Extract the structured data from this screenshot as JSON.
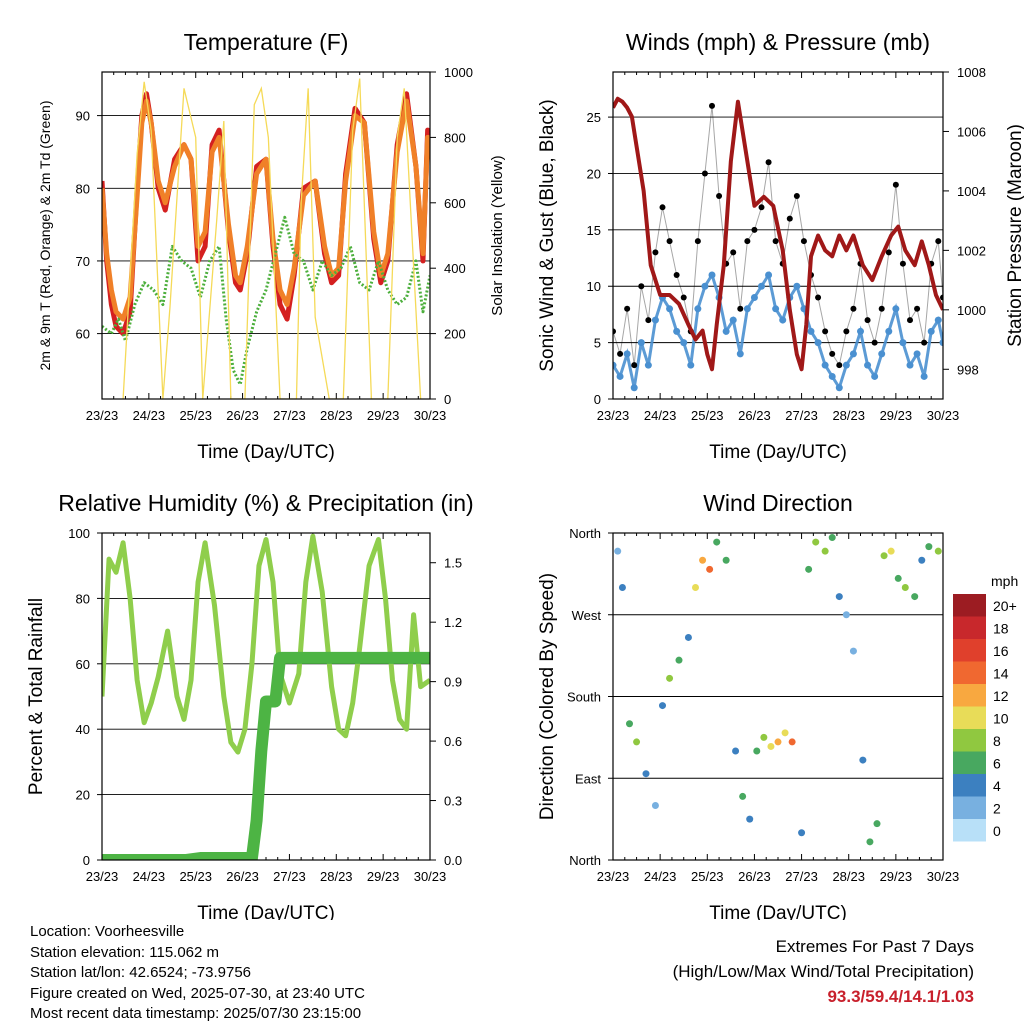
{
  "chart_data": [
    {
      "type": "line",
      "title": "Temperature (F)",
      "xlabel": "Time (Day/UTC)",
      "ylabel": "2m & 9m T (Red, Orange) & 2m Td (Green)",
      "y2label": "Solar Insolation (Yellow)",
      "categories": [
        "23/23",
        "24/23",
        "25/23",
        "26/23",
        "27/23",
        "28/23",
        "29/23",
        "30/23"
      ],
      "xlim": [
        0,
        7
      ],
      "ylim": [
        51,
        96
      ],
      "y2lim": [
        0,
        1000
      ],
      "yticks": [
        60,
        70,
        80,
        90
      ],
      "y2ticks": [
        0,
        200,
        400,
        600,
        800,
        1000
      ],
      "series": [
        {
          "color": "#d42020",
          "axis": "left",
          "x": [
            0,
            0.1,
            0.2,
            0.3,
            0.45,
            0.6,
            0.75,
            0.85,
            0.95,
            1.05,
            1.2,
            1.35,
            1.55,
            1.75,
            1.9,
            2.05,
            2.2,
            2.35,
            2.5,
            2.7,
            2.85,
            2.95,
            3.1,
            3.3,
            3.5,
            3.65,
            3.8,
            3.95,
            4.1,
            4.3,
            4.55,
            4.75,
            4.9,
            5.05,
            5.2,
            5.4,
            5.6,
            5.8,
            5.95,
            6.1,
            6.3,
            6.5,
            6.7,
            6.85,
            6.95,
            7.0
          ],
          "y": [
            81,
            70,
            64,
            61,
            60,
            63,
            80,
            90,
            93,
            89,
            80,
            77,
            84,
            86,
            84,
            70,
            72,
            86,
            88,
            74,
            67,
            66,
            71,
            83,
            84,
            72,
            64,
            62,
            68,
            80,
            81,
            71,
            67,
            68,
            82,
            91,
            89,
            73,
            67,
            70,
            86,
            93,
            83,
            70,
            88,
            84
          ]
        },
        {
          "color": "#f08028",
          "axis": "left",
          "x": [
            0,
            0.1,
            0.2,
            0.3,
            0.45,
            0.6,
            0.75,
            0.85,
            0.95,
            1.05,
            1.2,
            1.35,
            1.55,
            1.75,
            1.9,
            2.05,
            2.2,
            2.35,
            2.5,
            2.7,
            2.85,
            2.95,
            3.1,
            3.3,
            3.5,
            3.65,
            3.8,
            3.95,
            4.1,
            4.3,
            4.55,
            4.75,
            4.9,
            5.05,
            5.2,
            5.4,
            5.6,
            5.8,
            5.95,
            6.1,
            6.3,
            6.5,
            6.7,
            6.85,
            6.95,
            7.0
          ],
          "y": [
            80,
            71,
            66,
            63,
            62,
            65,
            79,
            89,
            92,
            89,
            81,
            78,
            83,
            86,
            84,
            72,
            74,
            85,
            87,
            75,
            68,
            67,
            72,
            82,
            84,
            73,
            66,
            64,
            69,
            79,
            81,
            72,
            68,
            69,
            81,
            90,
            89,
            74,
            68,
            71,
            85,
            92,
            83,
            71,
            87,
            84
          ]
        },
        {
          "color": "#4caf3c",
          "axis": "left",
          "x": [
            0,
            0.2,
            0.35,
            0.5,
            0.7,
            0.9,
            1.1,
            1.3,
            1.5,
            1.7,
            1.9,
            2.1,
            2.3,
            2.5,
            2.65,
            2.8,
            2.95,
            3.1,
            3.3,
            3.5,
            3.7,
            3.9,
            4.1,
            4.3,
            4.5,
            4.7,
            4.9,
            5.1,
            5.3,
            5.5,
            5.7,
            5.9,
            6.1,
            6.3,
            6.5,
            6.7,
            6.85,
            7.0
          ],
          "y": [
            61,
            60,
            62,
            59,
            64,
            67,
            66,
            64,
            72,
            70,
            69,
            65,
            70,
            72,
            62,
            55,
            53,
            58,
            63,
            66,
            71,
            76,
            71,
            70,
            66,
            70,
            68,
            69,
            72,
            67,
            66,
            70,
            66,
            64,
            65,
            70,
            63,
            68
          ]
        },
        {
          "color": "#f5da58",
          "axis": "right",
          "x": [
            0.45,
            0.75,
            0.9,
            1.05,
            1.3,
            1.45,
            1.75,
            2.0,
            2.15,
            2.45,
            2.6,
            2.75,
            3.05,
            3.25,
            3.4,
            3.55,
            3.8,
            4.15,
            4.25,
            4.4,
            4.55,
            4.85,
            5.15,
            5.35,
            5.5,
            5.75,
            6.1,
            6.3,
            6.45,
            6.8
          ],
          "y": [
            0,
            750,
            970,
            820,
            0,
            280,
            950,
            800,
            0,
            550,
            850,
            0,
            0,
            900,
            950,
            800,
            0,
            0,
            600,
            950,
            250,
            0,
            0,
            820,
            980,
            0,
            0,
            800,
            950,
            0
          ]
        }
      ]
    },
    {
      "type": "scatter",
      "title": "Winds (mph) & Pressure (mb)",
      "xlabel": "Time (Day/UTC)",
      "ylabel": "Sonic Wind & Gust (Blue, Black)",
      "y2label": "Station Pressure (Maroon)",
      "categories": [
        "23/23",
        "24/23",
        "25/23",
        "26/23",
        "27/23",
        "28/23",
        "29/23",
        "30/23"
      ],
      "xlim": [
        0,
        7
      ],
      "ylim": [
        0,
        29
      ],
      "y2lim": [
        997,
        1008
      ],
      "yticks": [
        0,
        5,
        10,
        15,
        20,
        25
      ],
      "y2ticks": [
        998,
        1000,
        1002,
        1004,
        1006,
        1008
      ],
      "series": [
        {
          "color": "#4a90d0",
          "kind": "wind",
          "x": [
            0,
            0.15,
            0.3,
            0.45,
            0.6,
            0.75,
            0.9,
            1.05,
            1.2,
            1.35,
            1.5,
            1.65,
            1.8,
            1.95,
            2.1,
            2.25,
            2.4,
            2.55,
            2.7,
            2.85,
            3.0,
            3.15,
            3.3,
            3.45,
            3.6,
            3.75,
            3.9,
            4.05,
            4.2,
            4.35,
            4.5,
            4.65,
            4.8,
            4.95,
            5.1,
            5.25,
            5.4,
            5.55,
            5.7,
            5.85,
            6.0,
            6.15,
            6.3,
            6.45,
            6.6,
            6.75,
            6.9,
            7.0
          ],
          "y": [
            3,
            2,
            4,
            1,
            5,
            3,
            7,
            9,
            8,
            6,
            5,
            3,
            8,
            10,
            11,
            9,
            6,
            7,
            4,
            8,
            9,
            10,
            11,
            8,
            7,
            9,
            10,
            8,
            6,
            5,
            3,
            2,
            1,
            3,
            4,
            6,
            3,
            2,
            4,
            6,
            8,
            5,
            3,
            4,
            2,
            6,
            7,
            5
          ]
        },
        {
          "color": "#000000",
          "kind": "gust",
          "x": [
            0,
            0.15,
            0.3,
            0.45,
            0.6,
            0.75,
            0.9,
            1.05,
            1.2,
            1.35,
            1.5,
            1.65,
            1.8,
            1.95,
            2.1,
            2.25,
            2.4,
            2.55,
            2.7,
            2.85,
            3.0,
            3.15,
            3.3,
            3.45,
            3.6,
            3.75,
            3.9,
            4.05,
            4.2,
            4.35,
            4.5,
            4.65,
            4.8,
            4.95,
            5.1,
            5.25,
            5.4,
            5.55,
            5.7,
            5.85,
            6.0,
            6.15,
            6.3,
            6.45,
            6.6,
            6.75,
            6.9,
            7.0
          ],
          "y": [
            6,
            4,
            8,
            3,
            10,
            7,
            13,
            17,
            14,
            11,
            9,
            6,
            14,
            20,
            26,
            18,
            12,
            13,
            8,
            14,
            15,
            17,
            21,
            14,
            12,
            16,
            18,
            14,
            11,
            9,
            6,
            4,
            3,
            6,
            8,
            12,
            7,
            5,
            8,
            13,
            19,
            12,
            7,
            8,
            5,
            12,
            14,
            9
          ]
        },
        {
          "color": "#a01818",
          "kind": "pressure",
          "x": [
            0,
            0.1,
            0.2,
            0.3,
            0.4,
            0.5,
            0.65,
            0.8,
            1.0,
            1.2,
            1.4,
            1.6,
            1.75,
            1.9,
            2.0,
            2.1,
            2.2,
            2.35,
            2.5,
            2.65,
            2.8,
            3.0,
            3.2,
            3.4,
            3.6,
            3.75,
            3.9,
            4.0,
            4.1,
            4.2,
            4.35,
            4.5,
            4.65,
            4.8,
            4.95,
            5.1,
            5.3,
            5.5,
            5.7,
            5.9,
            6.05,
            6.2,
            6.4,
            6.55,
            6.7,
            6.85,
            7.0
          ],
          "y": [
            1006.8,
            1007.1,
            1007.0,
            1006.8,
            1006.5,
            1005.5,
            1004.0,
            1001.5,
            1000.5,
            1000.5,
            1000.2,
            999.5,
            999.0,
            999.3,
            998.5,
            998.0,
            999.5,
            1001.5,
            1005.0,
            1007.0,
            1005.5,
            1003.5,
            1003.8,
            1003.5,
            1002.0,
            1000.0,
            998.5,
            998.0,
            999.5,
            1001.8,
            1002.5,
            1002.0,
            1001.8,
            1002.5,
            1002.0,
            1002.5,
            1001.5,
            1001.0,
            1001.8,
            1002.5,
            1002.8,
            1002.0,
            1001.5,
            1002.3,
            1001.5,
            1000.5,
            1000.0
          ]
        }
      ]
    },
    {
      "type": "line",
      "title": "Relative Humidity (%) & Precipitation (in)",
      "xlabel": "Time (Day/UTC)",
      "ylabel": "Percent & Total Rainfall",
      "categories": [
        "23/23",
        "24/23",
        "25/23",
        "26/23",
        "27/23",
        "28/23",
        "29/23",
        "30/23"
      ],
      "xlim": [
        0,
        7
      ],
      "ylim": [
        0,
        100
      ],
      "y2lim": [
        0,
        1.65
      ],
      "yticks": [
        0,
        20,
        40,
        60,
        80,
        100
      ],
      "y2ticks": [
        "0.0",
        "0.3",
        "0.6",
        "0.9",
        "1.2",
        "1.5"
      ],
      "series": [
        {
          "color": "#8fce4c",
          "name": "",
          "x": [
            0,
            0.15,
            0.3,
            0.45,
            0.6,
            0.75,
            0.9,
            1.05,
            1.2,
            1.4,
            1.6,
            1.75,
            1.9,
            2.05,
            2.2,
            2.4,
            2.6,
            2.75,
            2.9,
            3.05,
            3.2,
            3.35,
            3.5,
            3.65,
            3.8,
            4.0,
            4.2,
            4.35,
            4.5,
            4.7,
            4.9,
            5.05,
            5.2,
            5.35,
            5.5,
            5.7,
            5.9,
            6.05,
            6.2,
            6.35,
            6.5,
            6.65,
            6.8,
            7.0
          ],
          "y": [
            50,
            92,
            88,
            97,
            80,
            55,
            42,
            48,
            56,
            70,
            50,
            43,
            55,
            85,
            97,
            78,
            50,
            36,
            33,
            40,
            60,
            90,
            98,
            85,
            57,
            48,
            57,
            85,
            99,
            82,
            53,
            40,
            38,
            48,
            65,
            90,
            98,
            80,
            55,
            43,
            40,
            75,
            53,
            55
          ]
        },
        {
          "color": "#4db444",
          "name": "",
          "x": [
            0,
            0.3,
            0.6,
            0.9,
            1.2,
            1.5,
            1.8,
            2.1,
            2.4,
            2.7,
            3.0,
            3.2,
            3.3,
            3.4,
            3.5,
            3.6,
            3.7,
            3.8,
            3.9,
            4.2,
            4.6,
            5.0,
            5.4,
            5.8,
            6.2,
            6.6,
            7.0
          ],
          "y": [
            0,
            0,
            0,
            0,
            0,
            0,
            0,
            0.01,
            0.01,
            0.01,
            0.01,
            0.01,
            0.2,
            0.55,
            0.8,
            0.8,
            0.8,
            1.02,
            1.02,
            1.02,
            1.02,
            1.02,
            1.02,
            1.02,
            1.02,
            1.02,
            1.02
          ]
        }
      ]
    },
    {
      "type": "scatter",
      "title": "Wind Direction",
      "xlabel": "Time (Day/UTC)",
      "ylabel": "Direction (Colored By Speed)",
      "categories": [
        "23/23",
        "24/23",
        "25/23",
        "26/23",
        "27/23",
        "28/23",
        "29/23",
        "30/23"
      ],
      "xlim": [
        0,
        7
      ],
      "ylim": [
        0,
        360
      ],
      "ytick_labels": [
        "North",
        "East",
        "South",
        "West",
        "North"
      ],
      "ytick_values": [
        0,
        90,
        180,
        270,
        360
      ],
      "colorbar": {
        "unit": "mph",
        "labels": [
          "20+",
          "18",
          "16",
          "14",
          "12",
          "10",
          "8",
          "6",
          "4",
          "2",
          "0"
        ],
        "colors": [
          "#9c1c22",
          "#c8282c",
          "#e0402c",
          "#f06830",
          "#f8a840",
          "#e8dc58",
          "#90c840",
          "#48a860",
          "#3c80c0",
          "#78b0e0",
          "#b8e0f8"
        ]
      },
      "series": [
        {
          "name": "",
          "x": [
            0.1,
            0.2,
            0.35,
            0.5,
            0.7,
            0.9,
            1.05,
            1.2,
            1.4,
            1.6,
            1.75,
            1.9,
            2.05,
            2.2,
            2.4,
            2.6,
            2.75,
            2.9,
            3.05,
            3.2,
            3.35,
            3.5,
            3.65,
            3.8,
            4.0,
            4.15,
            4.3,
            4.5,
            4.65,
            4.8,
            4.95,
            5.1,
            5.3,
            5.45,
            5.6,
            5.75,
            5.9,
            6.05,
            6.2,
            6.4,
            6.55,
            6.7,
            6.9
          ],
          "y": [
            340,
            300,
            150,
            130,
            95,
            60,
            170,
            200,
            220,
            245,
            300,
            330,
            320,
            350,
            330,
            120,
            70,
            45,
            120,
            135,
            125,
            130,
            140,
            130,
            30,
            320,
            350,
            340,
            355,
            290,
            270,
            230,
            110,
            20,
            40,
            335,
            340,
            310,
            300,
            290,
            330,
            345,
            340
          ],
          "speed": [
            2,
            3,
            6,
            8,
            4,
            2,
            3,
            8,
            6,
            4,
            10,
            12,
            14,
            6,
            5,
            3,
            6,
            4,
            5,
            8,
            10,
            12,
            10,
            14,
            3,
            6,
            8,
            7,
            6,
            3,
            2,
            2,
            3,
            6,
            5,
            8,
            10,
            6,
            8,
            5,
            3,
            6,
            8
          ]
        }
      ]
    }
  ],
  "info": {
    "location": "Location: Voorheesville",
    "elevation": "Station elevation: 115.062 m",
    "latlon": "Station lat/lon: 42.6524; -73.9756",
    "created": "Figure created on Wed, 2025-07-30, at 23:40 UTC",
    "recent": "Most recent data timestamp: 2025/07/30 23:15:00"
  },
  "extremes": {
    "title": "Extremes For Past 7 Days",
    "subtitle": "(High/Low/Max Wind/Total Precipitation)",
    "values": "93.3/59.4/14.1/1.03"
  }
}
